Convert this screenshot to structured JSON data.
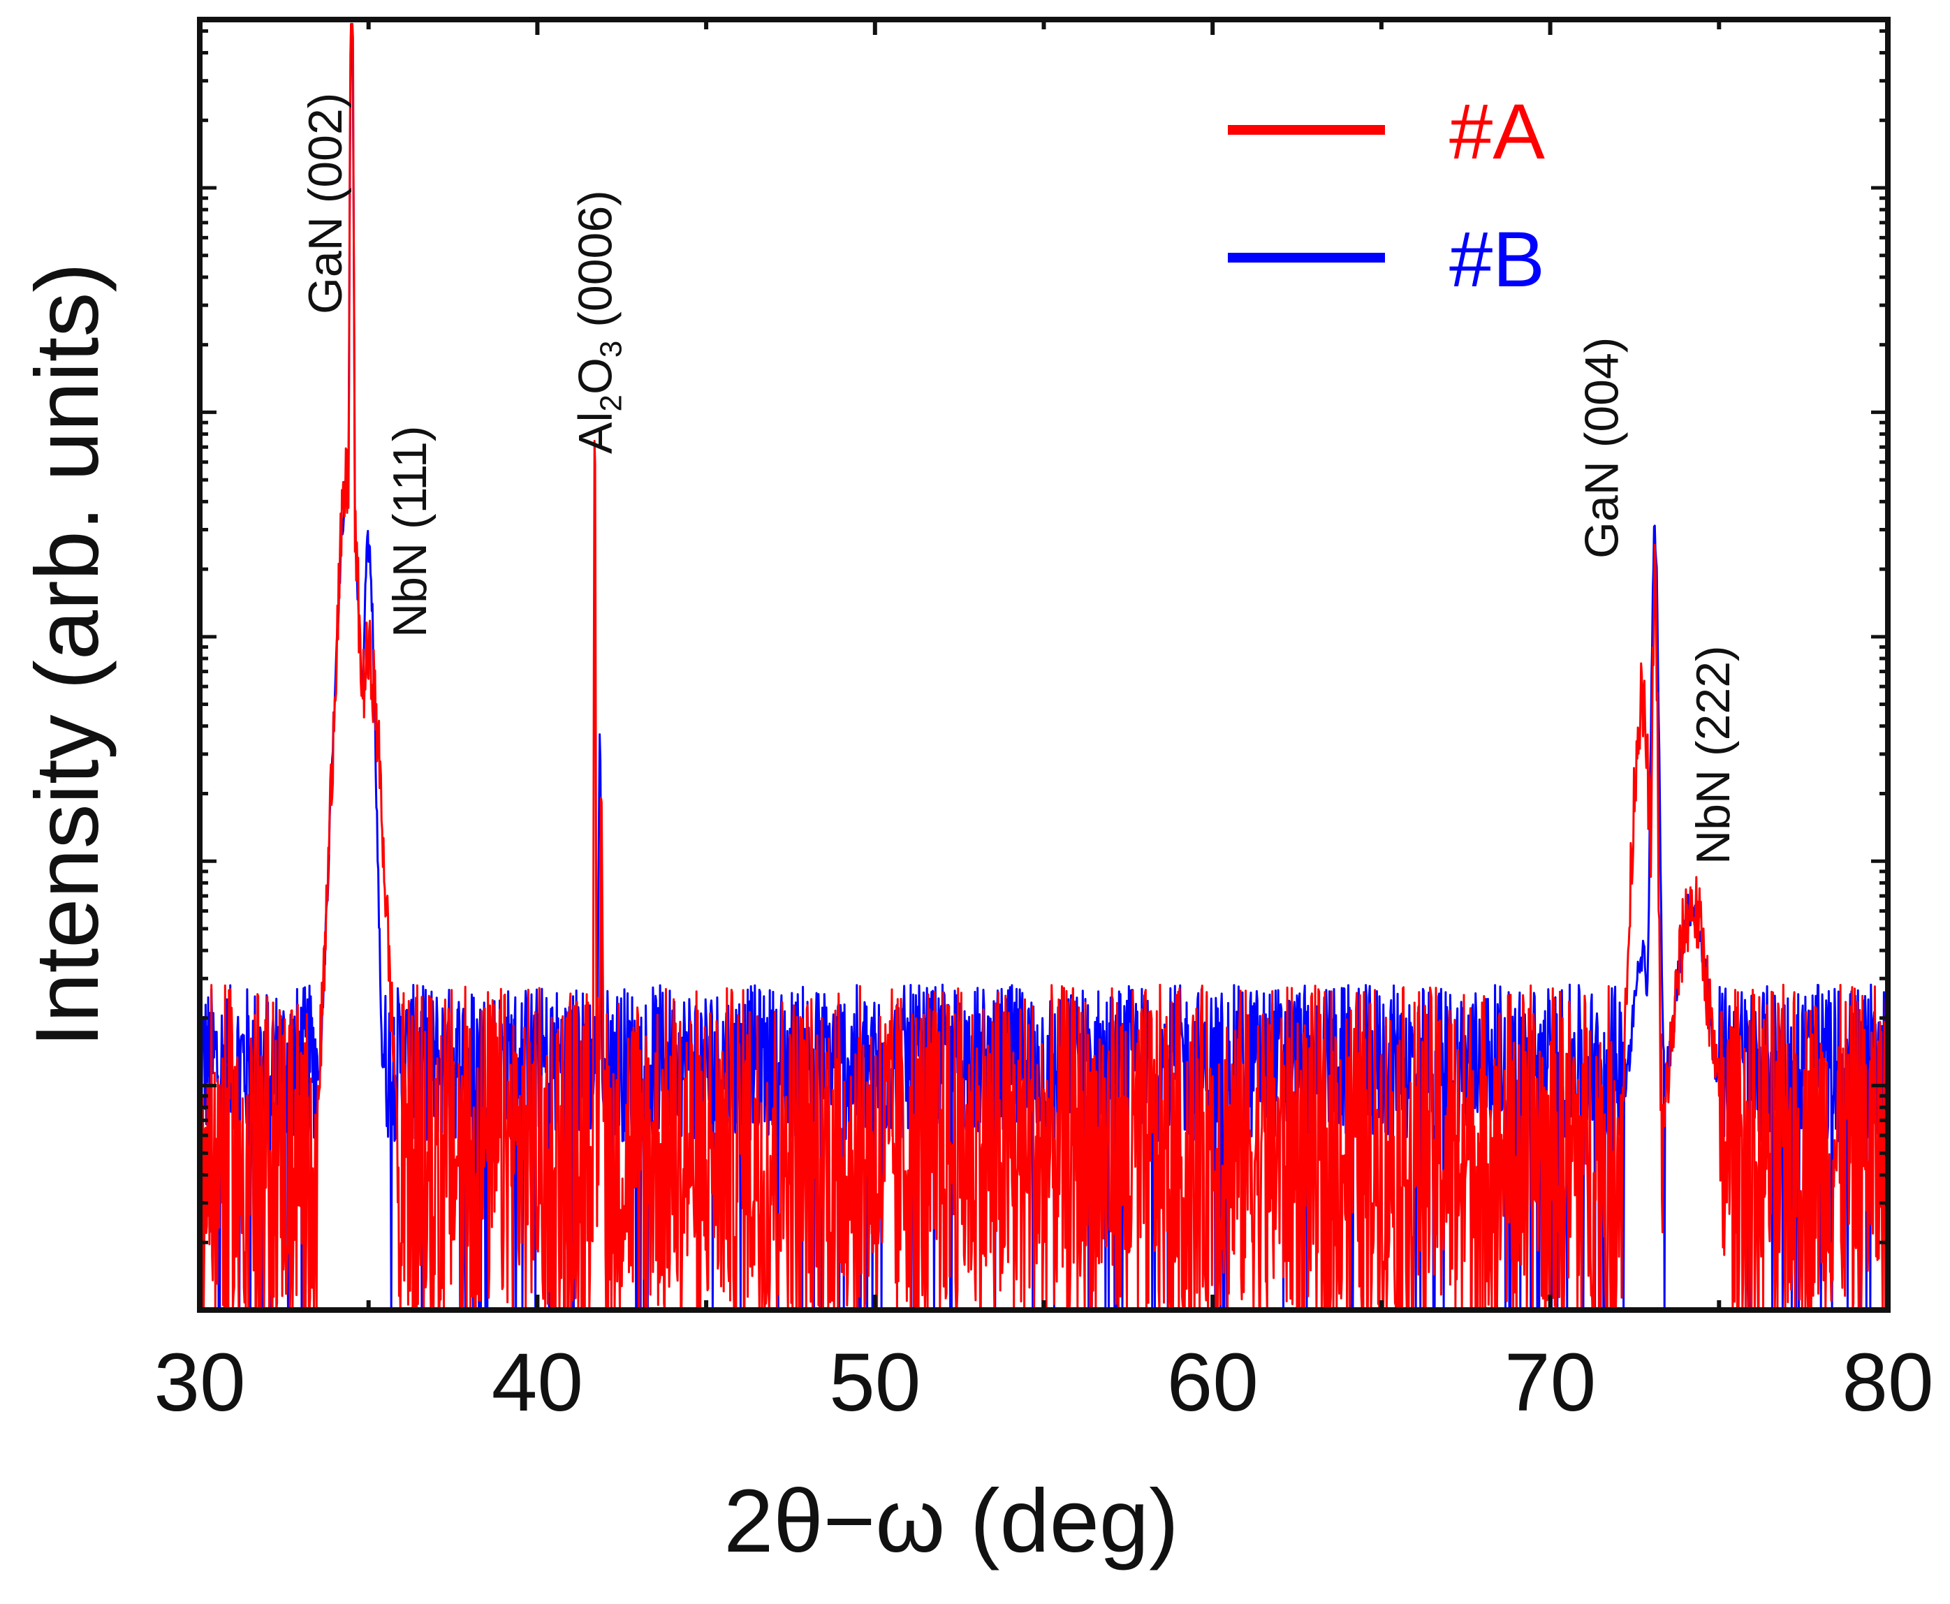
{
  "chart_data": {
    "type": "line",
    "xlabel": "2θ−ω (deg)",
    "ylabel": "Intensity (arb. units)",
    "xlim": [
      30,
      80
    ],
    "ylim_log10": [
      0,
      5.75
    ],
    "y_scale": "log",
    "x_ticks": [
      "30",
      "40",
      "50",
      "60",
      "70",
      "80"
    ],
    "x_tick_values": [
      30,
      40,
      50,
      60,
      70,
      80
    ],
    "legend_position": "top-right",
    "series": [
      {
        "name": "#A",
        "color": "#ff0000",
        "background_log": 0.7,
        "noise_log": 0.75,
        "peaks": [
          {
            "x": 34.5,
            "log_height": 5.7,
            "width": 0.09
          },
          {
            "x": 34.4,
            "log_height": 3.4,
            "width": 0.5
          },
          {
            "x": 35.0,
            "log_height": 2.6,
            "width": 0.5
          },
          {
            "x": 41.7,
            "log_height": 3.8,
            "width": 0.03
          },
          {
            "x": 41.9,
            "log_height": 2.0,
            "width": 0.04
          },
          {
            "x": 72.7,
            "log_height": 2.4,
            "width": 0.35
          },
          {
            "x": 73.1,
            "log_height": 3.0,
            "width": 0.1
          },
          {
            "x": 74.2,
            "log_height": 1.5,
            "width": 0.6
          }
        ]
      },
      {
        "name": "#B",
        "color": "#0000ff",
        "background_log": 1.1,
        "noise_log": 0.35,
        "peaks": [
          {
            "x": 34.5,
            "log_height": 5.65,
            "width": 0.09
          },
          {
            "x": 34.4,
            "log_height": 3.4,
            "width": 0.5
          },
          {
            "x": 35.0,
            "log_height": 3.1,
            "width": 0.25
          },
          {
            "x": 41.85,
            "log_height": 2.2,
            "width": 0.05
          },
          {
            "x": 44.9,
            "log_height": 0.5,
            "width": 0.7
          },
          {
            "x": 73.1,
            "log_height": 3.15,
            "width": 0.15
          },
          {
            "x": 72.7,
            "log_height": 1.3,
            "width": 0.35
          },
          {
            "x": 74.2,
            "log_height": 1.5,
            "width": 0.6
          }
        ]
      }
    ],
    "annotations": [
      {
        "text": "GaN (002)",
        "x": 34.2
      },
      {
        "text": "NbN (111)",
        "x": 36.7
      },
      {
        "text": "Al",
        "sub1": "2",
        "mid": "O",
        "sub2": "3",
        "tail": " (0006)",
        "x": 42.2
      },
      {
        "text": "GaN (004)",
        "x": 72.0
      },
      {
        "text": "NbN (222)",
        "x": 75.3
      }
    ]
  }
}
